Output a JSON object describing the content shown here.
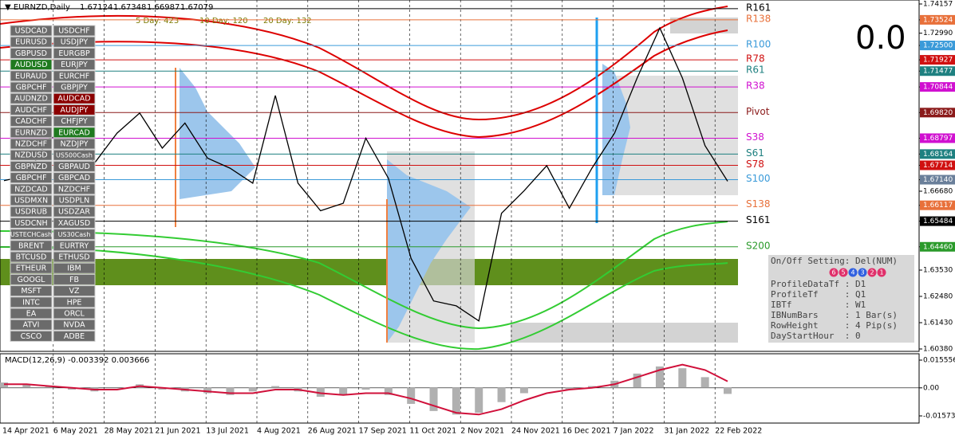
{
  "header": {
    "symbol": "▼ EURNZD,Daily",
    "ohlc": [
      1.67124,
      1.67348,
      1.66987,
      1.67079
    ],
    "day_stats": [
      "5 Day: 423",
      "10 Day: 120",
      "20 Day: 132"
    ]
  },
  "big_value": "0.0",
  "buttons": [
    {
      "text": "USDCAD"
    },
    {
      "text": "USDCHF"
    },
    {
      "text": "EURUSD"
    },
    {
      "text": "USDJPY"
    },
    {
      "text": "GBPUSD"
    },
    {
      "text": "EURGBP"
    },
    {
      "text": "AUDUSD",
      "color": "#1f7a1f"
    },
    {
      "text": "EURJPY"
    },
    {
      "text": "EURAUD"
    },
    {
      "text": "EURCHF"
    },
    {
      "text": "GBPCHF"
    },
    {
      "text": "GBPJPY"
    },
    {
      "text": "AUDNZD"
    },
    {
      "text": "AUDCAD",
      "color": "#8b0000"
    },
    {
      "text": "AUDCHF"
    },
    {
      "text": "AUDJPY",
      "color": "#8b0000"
    },
    {
      "text": "CADCHF"
    },
    {
      "text": "CHFJPY"
    },
    {
      "text": "EURNZD"
    },
    {
      "text": "EURCAD",
      "color": "#1f7a1f"
    },
    {
      "text": "NZDCHF"
    },
    {
      "text": "NZDJPY"
    },
    {
      "text": "NZDUSD"
    },
    {
      "text": "US500Cash"
    },
    {
      "text": "GBPNZD"
    },
    {
      "text": "GBPAUD"
    },
    {
      "text": "GBPCHF"
    },
    {
      "text": "GBPCAD"
    },
    {
      "text": "NZDCAD"
    },
    {
      "text": "NZDCHF"
    },
    {
      "text": "USDMXN"
    },
    {
      "text": "USDPLN"
    },
    {
      "text": "USDRUB"
    },
    {
      "text": "USDZAR"
    },
    {
      "text": "USDCNH"
    },
    {
      "text": "XAGUSD"
    },
    {
      "text": "USTECHCash"
    },
    {
      "text": "US30Cash"
    },
    {
      "text": "BRENT"
    },
    {
      "text": "EURTRY"
    },
    {
      "text": "BTCUSD"
    },
    {
      "text": "ETHUSD"
    },
    {
      "text": "ETHEUR"
    },
    {
      "text": "IBM"
    },
    {
      "text": "GOOGL"
    },
    {
      "text": "FB"
    },
    {
      "text": "MSFT"
    },
    {
      "text": "VZ"
    },
    {
      "text": "INTC"
    },
    {
      "text": "HPE"
    },
    {
      "text": "EA"
    },
    {
      "text": "ORCL"
    },
    {
      "text": "ATVI"
    },
    {
      "text": "NVDA"
    },
    {
      "text": "CSCO"
    },
    {
      "text": "ADBE"
    }
  ],
  "price_chart": {
    "ylim": [
      1.6038,
      1.74157
    ],
    "closes": [
      1.671,
      1.673,
      1.688,
      1.69,
      1.678,
      1.69,
      1.698,
      1.684,
      1.694,
      1.68,
      1.676,
      1.67,
      1.705,
      1.67,
      1.659,
      1.662,
      1.688,
      1.672,
      1.64,
      1.623,
      1.621,
      1.615,
      1.658,
      1.667,
      1.677,
      1.66,
      1.676,
      1.69,
      1.712,
      1.732,
      1.712,
      1.685,
      1.67079
    ],
    "price_axis": [
      {
        "value": 1.74157
      },
      {
        "value": 1.73524,
        "color": "#e8703a"
      },
      {
        "value": 1.7299,
        "label": "1.72990"
      },
      {
        "value": 1.725,
        "label": "1.72500",
        "color": "#3a9ad9"
      },
      {
        "value": 1.71927,
        "color": "#d01010"
      },
      {
        "value": 1.71477,
        "color": "#1e8080"
      },
      {
        "value": 1.70844,
        "color": "#d010d0"
      },
      {
        "value": 1.6982,
        "label": "1.69820",
        "color": "#8b1a1a"
      },
      {
        "value": 1.68797,
        "color": "#d010d0"
      },
      {
        "value": 1.68164,
        "color": "#1e8080"
      },
      {
        "value": 1.67714,
        "color": "#d01010"
      },
      {
        "value": 1.6714,
        "label": "1.67140",
        "color": "#6a7f9a"
      },
      {
        "value": 1.6668,
        "label": "1.66680"
      },
      {
        "value": 1.66117,
        "color": "#e8703a"
      },
      {
        "value": 1.65484,
        "color": "#000000"
      },
      {
        "value": 1.6446,
        "label": "1.64460",
        "color": "#2a9a2a"
      },
      {
        "value": 1.6353,
        "label": "1.63530"
      },
      {
        "value": 1.6248,
        "label": "1.62480"
      },
      {
        "value": 1.6143,
        "label": "1.61430"
      },
      {
        "value": 1.6038,
        "label": "1.60380"
      }
    ],
    "levels": [
      {
        "label": "R161",
        "price": 1.7397,
        "color": "#000000"
      },
      {
        "label": "R138",
        "price": 1.73524,
        "color": "#e8703a"
      },
      {
        "label": "R100",
        "price": 1.725,
        "color": "#3a9ad9"
      },
      {
        "label": "R78",
        "price": 1.71927,
        "color": "#d01010"
      },
      {
        "label": "R61",
        "price": 1.71477,
        "color": "#1e8080"
      },
      {
        "label": "R38",
        "price": 1.70844,
        "color": "#d010d0"
      },
      {
        "label": "Pivot",
        "price": 1.6982,
        "color": "#8b1a1a"
      },
      {
        "label": "S38",
        "price": 1.68797,
        "color": "#d010d0"
      },
      {
        "label": "S61",
        "price": 1.68164,
        "color": "#1e8080"
      },
      {
        "label": "S78",
        "price": 1.67714,
        "color": "#d01010"
      },
      {
        "label": "S100",
        "price": 1.6714,
        "color": "#3a9ad9"
      },
      {
        "label": "S138",
        "price": 1.66117,
        "color": "#e8703a"
      },
      {
        "label": "S161",
        "price": 1.65484,
        "color": "#000000"
      },
      {
        "label": "S200",
        "price": 1.6446,
        "color": "#2a9a2a"
      }
    ],
    "dates": [
      "14 Apr 2021",
      "6 May 2021",
      "28 May 2021",
      "21 Jun 2021",
      "13 Jul 2021",
      "4 Aug 2021",
      "26 Aug 2021",
      "17 Sep 2021",
      "11 Oct 2021",
      "2 Nov 2021",
      "24 Nov 2021",
      "16 Dec 2021",
      "7 Jan 2022",
      "31 Jan 2022",
      "22 Feb 2022"
    ]
  },
  "macd": {
    "label": "MACD(12,26,9) -0.003392 0.003666",
    "ylim": [
      -0.015739,
      0.015556
    ],
    "ticks": [
      {
        "value": 0.015556
      },
      {
        "value": 0,
        "label": "0.00"
      },
      {
        "value": -0.015739
      }
    ],
    "histogram": [
      0.003,
      0.002,
      0.001,
      -0.001,
      -0.002,
      0.0,
      0.002,
      -0.001,
      -0.002,
      -0.003,
      -0.004,
      -0.002,
      0.001,
      -0.002,
      -0.005,
      -0.004,
      -0.001,
      -0.004,
      -0.009,
      -0.013,
      -0.015,
      -0.014,
      -0.008,
      -0.003,
      0.0,
      -0.001,
      0.001,
      0.004,
      0.008,
      0.012,
      0.011,
      0.006,
      -0.003392
    ],
    "signal": [
      0.002,
      0.002,
      0.001,
      0.0,
      -0.001,
      -0.001,
      0.001,
      0.0,
      -0.001,
      -0.002,
      -0.003,
      -0.003,
      -0.001,
      -0.001,
      -0.003,
      -0.004,
      -0.003,
      -0.003,
      -0.006,
      -0.01,
      -0.014,
      -0.015,
      -0.012,
      -0.007,
      -0.003,
      -0.001,
      0.0,
      0.002,
      0.006,
      0.01,
      0.013,
      0.01,
      0.003666
    ]
  },
  "info": {
    "title": "On/Off Setting: Del(NUM)",
    "circles": [
      "6",
      "5",
      "4",
      "3",
      "2",
      "1"
    ],
    "circle_colors": [
      "#e0306a",
      "#e0306a",
      "#3060e0",
      "#3060e0",
      "#e0306a",
      "#e0306a"
    ],
    "lines": [
      "ProfileDataTf : D1",
      "ProfileTf     : Q1",
      "IBTf          : W1",
      "IBNumBars     : 1 Bar(s)",
      "RowHeight     : 4 Pip(s)",
      "DayStartHour  : 0"
    ]
  }
}
